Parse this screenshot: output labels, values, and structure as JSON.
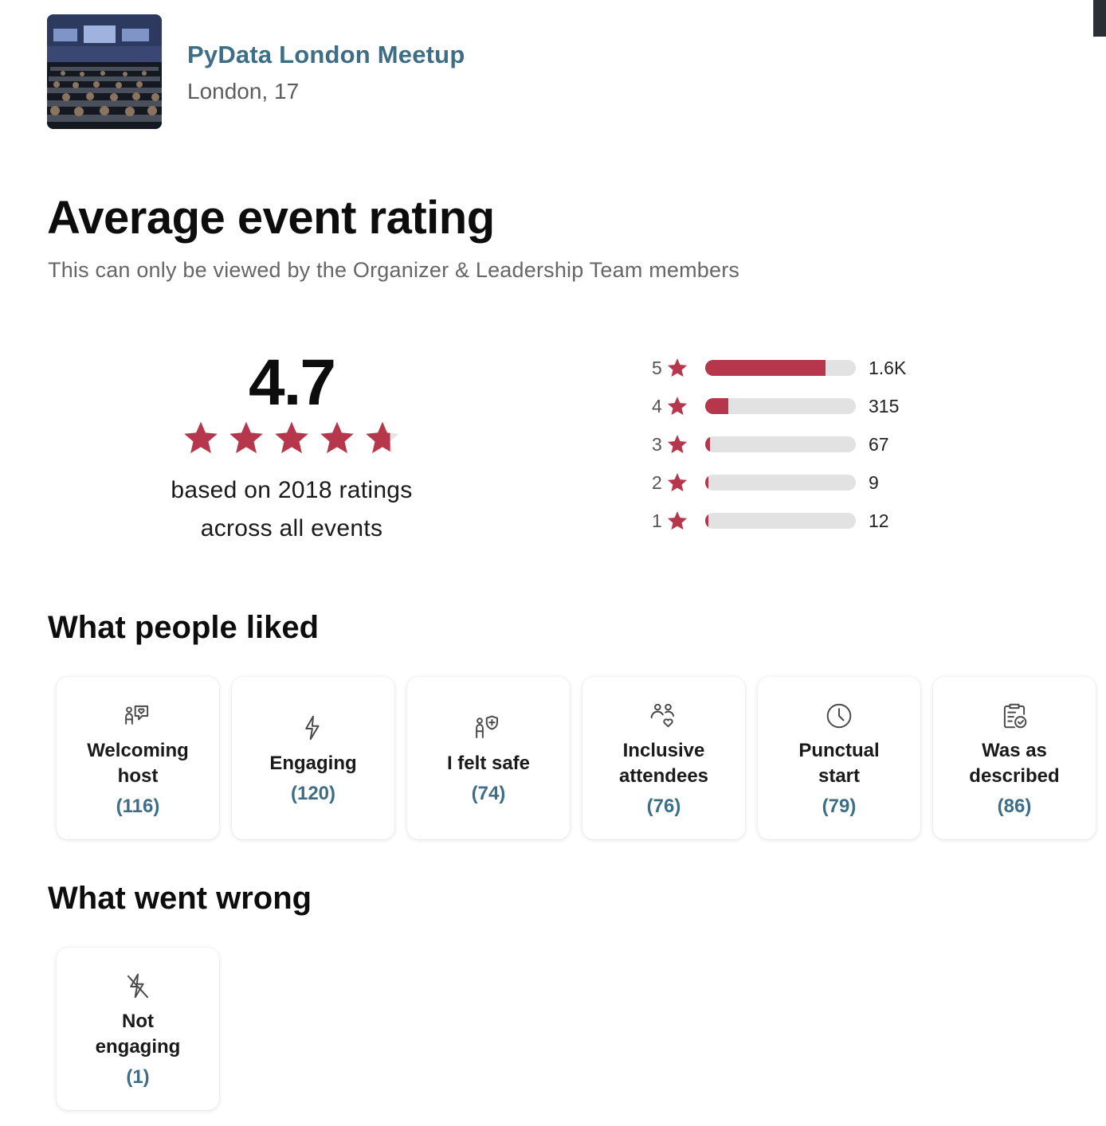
{
  "group": {
    "name": "PyData London Meetup",
    "location": "London, 17"
  },
  "page": {
    "title": "Average event rating",
    "subtitle": "This can only be viewed by the Organizer & Leadership Team members"
  },
  "rating": {
    "average": "4.7",
    "average_value": 4.7,
    "caption_line1": "based on 2018 ratings",
    "caption_line2": "across all events"
  },
  "distribution": [
    {
      "stars": "5",
      "count": "1.6K",
      "fill_fraction": 0.8
    },
    {
      "stars": "4",
      "count": "315",
      "fill_fraction": 0.156
    },
    {
      "stars": "3",
      "count": "67",
      "fill_fraction": 0.033
    },
    {
      "stars": "2",
      "count": "9",
      "fill_fraction": 0.004
    },
    {
      "stars": "1",
      "count": "12",
      "fill_fraction": 0.006
    }
  ],
  "liked": {
    "title": "What people liked",
    "items": [
      {
        "label": "Welcoming host",
        "count": "(116)",
        "icon": "welcoming-host-icon"
      },
      {
        "label": "Engaging",
        "count": "(120)",
        "icon": "lightning-icon"
      },
      {
        "label": "I felt safe",
        "count": "(74)",
        "icon": "person-shield-icon"
      },
      {
        "label": "Inclusive attendees",
        "count": "(76)",
        "icon": "people-heart-icon"
      },
      {
        "label": "Punctual start",
        "count": "(79)",
        "icon": "clock-icon"
      },
      {
        "label": "Was as described",
        "count": "(86)",
        "icon": "clipboard-check-icon"
      }
    ]
  },
  "wrong": {
    "title": "What went wrong",
    "items": [
      {
        "label": "Not engaging",
        "count": "(1)",
        "icon": "lightning-slash-icon"
      }
    ]
  },
  "colors": {
    "accent": "#b6374b",
    "link": "#3d6e86",
    "bar_track": "#e2e2e2"
  }
}
